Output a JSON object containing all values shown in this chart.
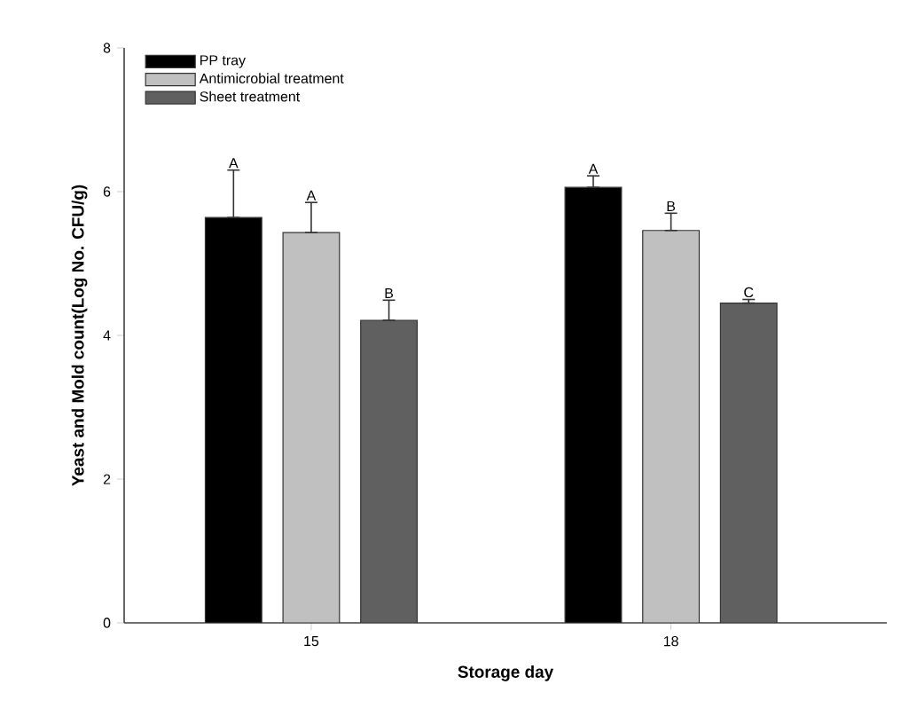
{
  "chart_data": {
    "type": "bar",
    "xlabel": "Storage day",
    "ylabel": "Yeast and Mold count(Log No. CFU/g)",
    "categories": [
      "15",
      "18"
    ],
    "series": [
      {
        "name": "PP tray",
        "color": "#000000",
        "values": [
          5.64,
          6.06
        ],
        "errors": [
          [
            5.64,
            6.3
          ],
          [
            6.06,
            6.22
          ]
        ]
      },
      {
        "name": "Antimicrobial treatment",
        "color": "#c0c0c0",
        "values": [
          5.43,
          5.46
        ],
        "errors": [
          [
            5.43,
            5.85
          ],
          [
            5.46,
            5.7
          ]
        ]
      },
      {
        "name": "Sheet treatment",
        "color": "#606060",
        "values": [
          4.21,
          4.45
        ],
        "errors": [
          [
            4.21,
            4.49
          ],
          [
            4.45,
            4.5
          ]
        ]
      }
    ],
    "ylim": [
      0,
      8
    ],
    "yticks": [
      0,
      2,
      4,
      6,
      8
    ],
    "grid": false,
    "legend": "top left",
    "annotations": [
      "A",
      "A",
      "B",
      "A",
      "B",
      "C"
    ]
  }
}
